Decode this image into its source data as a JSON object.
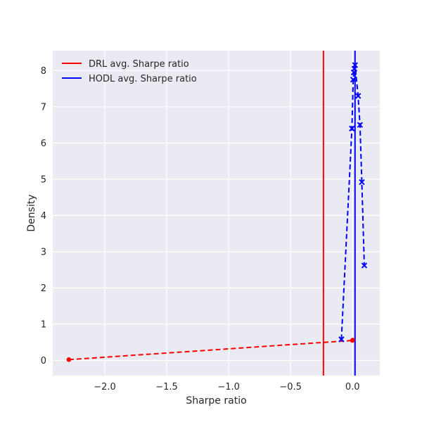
{
  "chart_data": {
    "type": "line",
    "title": "",
    "xlabel": "Sharpe ratio",
    "ylabel": "Density",
    "xlim": [
      -2.42,
      0.22
    ],
    "ylim": [
      -0.42,
      8.55
    ],
    "xticks": [
      -2.0,
      -1.5,
      -1.0,
      -0.5,
      0.0
    ],
    "xtick_labels": [
      "−2.0",
      "−1.5",
      "−1.0",
      "−0.5",
      "0.0"
    ],
    "yticks": [
      0,
      1,
      2,
      3,
      4,
      5,
      6,
      7,
      8
    ],
    "ytick_labels": [
      "0",
      "1",
      "2",
      "3",
      "4",
      "5",
      "6",
      "7",
      "8"
    ],
    "grid": true,
    "legend_position": "top-left",
    "series": [
      {
        "name": "DRL",
        "color": "#ff0000",
        "marker": "dot",
        "linestyle": "dashed",
        "x": [
          -2.29,
          -0.001,
          0.001
        ],
        "y": [
          0.02,
          0.55,
          0.56
        ]
      },
      {
        "name": "HODL",
        "color": "#0000ff",
        "marker": "x",
        "linestyle": "dashed",
        "x": [
          -0.09,
          -0.005,
          0.005,
          0.01,
          0.015,
          0.02,
          0.045,
          0.06,
          0.075,
          0.095
        ],
        "y": [
          0.58,
          6.4,
          7.75,
          7.95,
          8.05,
          8.15,
          7.3,
          6.5,
          4.92,
          2.62
        ]
      }
    ],
    "vlines": [
      {
        "name": "DRL avg. Sharpe ratio",
        "x": -0.235,
        "color": "#ff0000"
      },
      {
        "name": "HODL avg. Sharpe ratio",
        "x": 0.02,
        "color": "#0000ff"
      }
    ],
    "legend": [
      {
        "label": "DRL avg. Sharpe ratio",
        "color": "#ff0000"
      },
      {
        "label": "HODL avg. Sharpe ratio",
        "color": "#0000ff"
      }
    ]
  }
}
